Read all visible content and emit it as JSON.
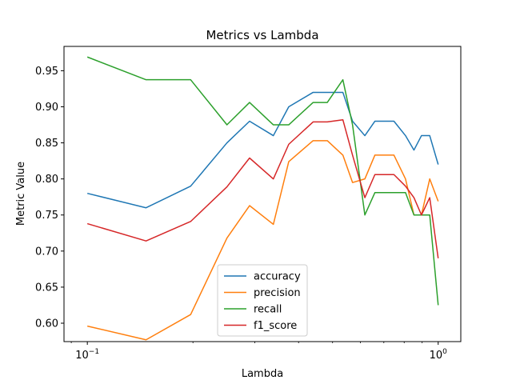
{
  "chart_data": {
    "type": "line",
    "title": "Metrics vs Lambda",
    "xlabel": "Lambda",
    "ylabel": "Metric Value",
    "xscale": "log",
    "xlim": [
      0.0858,
      1.16
    ],
    "ylim": [
      0.5745,
      0.9837
    ],
    "grid": false,
    "legend_position": "lower-center",
    "x_ticks": [
      {
        "value": 0.1,
        "base": "10",
        "exp": "−1"
      },
      {
        "value": 1.0,
        "base": "10",
        "exp": "0"
      }
    ],
    "y_ticks": [
      "0.60",
      "0.65",
      "0.70",
      "0.75",
      "0.80",
      "0.85",
      "0.90",
      "0.95"
    ],
    "x": [
      0.1,
      0.147,
      0.197,
      0.25,
      0.29,
      0.339,
      0.375,
      0.44,
      0.483,
      0.535,
      0.57,
      0.618,
      0.66,
      0.748,
      0.807,
      0.853,
      0.896,
      0.946,
      1.0
    ],
    "series": [
      {
        "name": "accuracy",
        "color": "#1f77b4",
        "values": [
          0.78,
          0.76,
          0.79,
          0.85,
          0.88,
          0.86,
          0.9,
          0.92,
          0.92,
          0.92,
          0.88,
          0.86,
          0.88,
          0.88,
          0.86,
          0.84,
          0.86,
          0.86,
          0.82
        ]
      },
      {
        "name": "precision",
        "color": "#ff7f0e",
        "values": [
          0.596,
          0.577,
          0.612,
          0.718,
          0.763,
          0.737,
          0.824,
          0.853,
          0.853,
          0.833,
          0.795,
          0.8,
          0.833,
          0.833,
          0.8,
          0.75,
          0.75,
          0.8,
          0.769
        ]
      },
      {
        "name": "recall",
        "color": "#2ca02c",
        "values": [
          0.969,
          0.9375,
          0.9375,
          0.875,
          0.906,
          0.875,
          0.875,
          0.906,
          0.906,
          0.9375,
          0.875,
          0.75,
          0.781,
          0.781,
          0.781,
          0.75,
          0.75,
          0.75,
          0.625
        ]
      },
      {
        "name": "f1_score",
        "color": "#d62728",
        "values": [
          0.738,
          0.714,
          0.741,
          0.789,
          0.829,
          0.8,
          0.848,
          0.879,
          0.879,
          0.882,
          0.833,
          0.774,
          0.806,
          0.806,
          0.79,
          0.774,
          0.75,
          0.774,
          0.69
        ]
      }
    ]
  }
}
